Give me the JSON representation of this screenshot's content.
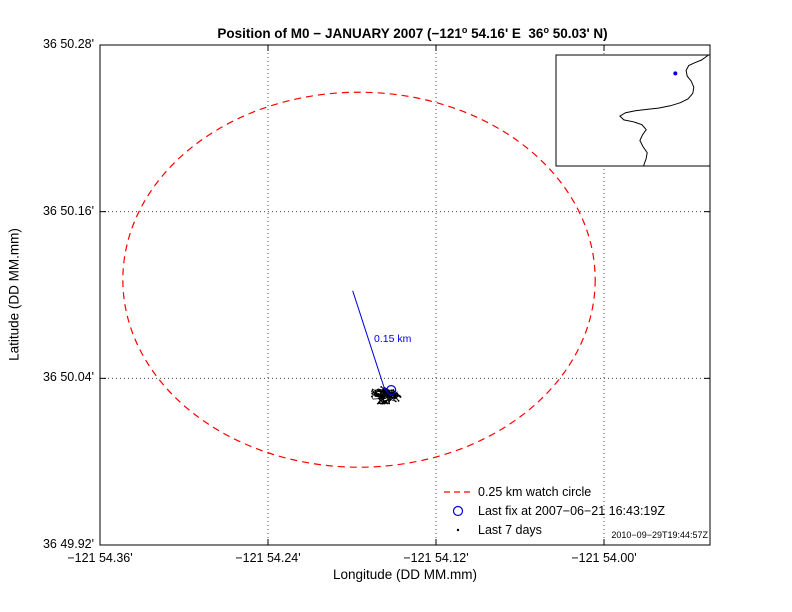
{
  "figure": {
    "timestamp": "2010−09−29T19:44:57Z"
  },
  "chart_data": {
    "type": "scatter",
    "title": "Position of M0 − JANUARY 2007 (−121° 54.16' E  36° 50.03' N)",
    "title_parts": {
      "prefix": "Position of M0 − JANUARY 2007 (−121",
      "deg1": "o",
      "mid": " 54.16' E  36",
      "deg2": "o",
      "suffix": " 50.03' N)"
    },
    "xlabel": "Longitude (DD MM.mm)",
    "ylabel": "Latitude (DD MM.mm)",
    "grid": "dotted",
    "x_axis": {
      "range": [
        -54.36,
        -53.9243
      ],
      "ticks": [
        {
          "value": -54.36,
          "label": "−121 54.36'"
        },
        {
          "value": -54.24,
          "label": "−121 54.24'"
        },
        {
          "value": -54.12,
          "label": "−121 54.12'"
        },
        {
          "value": -54.0,
          "label": "−121 54.00'"
        }
      ]
    },
    "y_axis": {
      "range": [
        49.92,
        50.28
      ],
      "ticks": [
        {
          "value": 50.28,
          "label": "36 50.28'"
        },
        {
          "value": 50.16,
          "label": "36 50.16'"
        },
        {
          "value": 50.04,
          "label": "36 50.04'"
        },
        {
          "value": 49.92,
          "label": "36 49.92'"
        }
      ]
    },
    "watch_circle": {
      "center": [
        -54.175,
        50.111
      ],
      "radius_km": 0.25,
      "km_per_lon_minute": 1.482,
      "km_per_lat_minute": 1.852,
      "color": "#ff0000"
    },
    "drift_vector": {
      "from": [
        -54.1795,
        50.103
      ],
      "to": [
        -54.1565,
        50.0316
      ],
      "label": "0.15 km",
      "color": "#0000dd"
    },
    "last_fix": {
      "position": [
        -54.152,
        50.0315
      ],
      "time_label": "2007−06−21 16:43:19Z",
      "color": "#0000dd"
    },
    "last7days_cluster": {
      "center": [
        -54.156,
        50.029
      ],
      "half_width_min": 0.016,
      "half_height_min": 0.0072,
      "points": 260,
      "seed": 7,
      "color": "#000000"
    },
    "legend": {
      "items": [
        {
          "marker": "dashed-line",
          "color": "#ff0000",
          "label": "0.25 km watch circle"
        },
        {
          "marker": "circle",
          "color": "#0000dd",
          "label": "Last fix at 2007−06−21 16:43:19Z"
        },
        {
          "marker": "dots",
          "color": "#000000",
          "label": "Last 7 days"
        }
      ]
    },
    "inset_map": {
      "coastline": [
        [
          0.99,
          0.0
        ],
        [
          0.945,
          0.045
        ],
        [
          0.9,
          0.07
        ],
        [
          0.862,
          0.095
        ],
        [
          0.845,
          0.14
        ],
        [
          0.852,
          0.19
        ],
        [
          0.878,
          0.235
        ],
        [
          0.895,
          0.29
        ],
        [
          0.888,
          0.345
        ],
        [
          0.858,
          0.395
        ],
        [
          0.808,
          0.43
        ],
        [
          0.742,
          0.458
        ],
        [
          0.665,
          0.478
        ],
        [
          0.59,
          0.49
        ],
        [
          0.515,
          0.503
        ],
        [
          0.452,
          0.52
        ],
        [
          0.415,
          0.55
        ],
        [
          0.44,
          0.585
        ],
        [
          0.503,
          0.602
        ],
        [
          0.558,
          0.628
        ],
        [
          0.586,
          0.672
        ],
        [
          0.562,
          0.72
        ],
        [
          0.545,
          0.77
        ],
        [
          0.565,
          0.825
        ],
        [
          0.592,
          0.88
        ],
        [
          0.585,
          0.935
        ],
        [
          0.568,
          1.0
        ]
      ],
      "marker": {
        "pos": [
          0.775,
          0.165
        ],
        "color": "#0000dd"
      }
    }
  }
}
